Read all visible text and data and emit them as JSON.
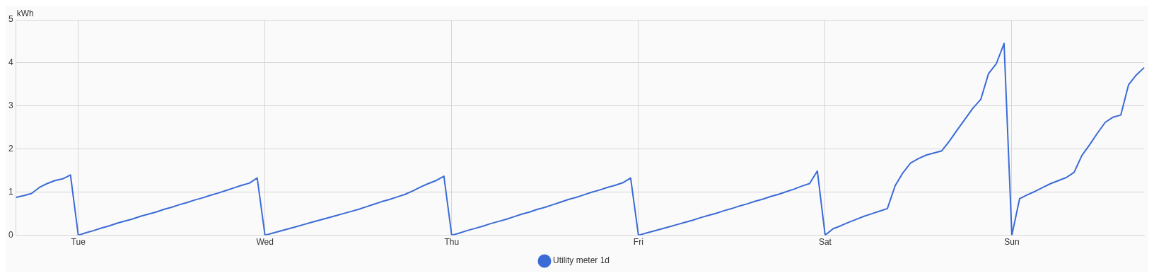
{
  "chart_data": {
    "type": "line",
    "ylabel": "kWh",
    "categories": [
      null,
      null,
      null,
      null,
      null,
      null,
      null,
      null,
      "Tue",
      null,
      null,
      null,
      null,
      null,
      null,
      null,
      null,
      null,
      null,
      null,
      null,
      null,
      null,
      null,
      null,
      null,
      null,
      null,
      null,
      null,
      null,
      null,
      "Wed",
      null,
      null,
      null,
      null,
      null,
      null,
      null,
      null,
      null,
      null,
      null,
      null,
      null,
      null,
      null,
      null,
      null,
      null,
      null,
      null,
      null,
      null,
      null,
      "Thu",
      null,
      null,
      null,
      null,
      null,
      null,
      null,
      null,
      null,
      null,
      null,
      null,
      null,
      null,
      null,
      null,
      null,
      null,
      null,
      null,
      null,
      null,
      null,
      "Fri",
      null,
      null,
      null,
      null,
      null,
      null,
      null,
      null,
      null,
      null,
      null,
      null,
      null,
      null,
      null,
      null,
      null,
      null,
      null,
      null,
      null,
      null,
      null,
      "Sat",
      null,
      null,
      null,
      null,
      null,
      null,
      null,
      null,
      null,
      null,
      null,
      null,
      null,
      null,
      null,
      null,
      null,
      null,
      null,
      null,
      null,
      null,
      null,
      "Sun",
      null,
      null,
      null,
      null,
      null,
      null,
      null,
      null,
      null,
      null,
      null,
      null,
      null,
      null,
      null,
      null,
      null
    ],
    "ylim": [
      0,
      5
    ],
    "yticks": [
      0,
      1,
      2,
      3,
      4,
      5
    ],
    "grid": true,
    "legend": "bottom",
    "series": [
      {
        "name": "Utility meter 1d",
        "color": "#3b6bd6",
        "values": [
          0.88,
          0.92,
          0.97,
          1.11,
          1.2,
          1.27,
          1.31,
          1.4,
          0,
          0.06,
          0.11,
          0.17,
          0.22,
          0.28,
          0.33,
          0.38,
          0.44,
          0.49,
          0.54,
          0.6,
          0.65,
          0.71,
          0.76,
          0.82,
          0.87,
          0.93,
          0.98,
          1.04,
          1.1,
          1.16,
          1.21,
          1.33,
          0,
          0.05,
          0.1,
          0.15,
          0.2,
          0.25,
          0.3,
          0.35,
          0.4,
          0.45,
          0.5,
          0.55,
          0.6,
          0.66,
          0.72,
          0.78,
          0.83,
          0.89,
          0.95,
          1.03,
          1.12,
          1.2,
          1.27,
          1.37,
          0,
          0.05,
          0.11,
          0.16,
          0.21,
          0.27,
          0.32,
          0.37,
          0.43,
          0.49,
          0.54,
          0.6,
          0.65,
          0.71,
          0.77,
          0.83,
          0.88,
          0.94,
          1,
          1.05,
          1.11,
          1.16,
          1.22,
          1.33,
          0,
          0.05,
          0.1,
          0.15,
          0.2,
          0.25,
          0.3,
          0.35,
          0.41,
          0.46,
          0.51,
          0.57,
          0.62,
          0.68,
          0.73,
          0.79,
          0.84,
          0.9,
          0.95,
          1.01,
          1.07,
          1.14,
          1.2,
          1.49,
          0,
          0.15,
          0.22,
          0.3,
          0.37,
          0.44,
          0.5,
          0.56,
          0.62,
          1.15,
          1.45,
          1.68,
          1.78,
          1.86,
          1.91,
          1.96,
          2.19,
          2.45,
          2.7,
          2.95,
          3.15,
          3.75,
          3.98,
          4.45,
          0,
          0.85,
          0.94,
          1.02,
          1.11,
          1.2,
          1.27,
          1.34,
          1.46,
          1.85,
          2.1,
          2.37,
          2.62,
          2.74,
          2.79,
          3.49,
          3.72,
          3.89
        ]
      }
    ]
  }
}
